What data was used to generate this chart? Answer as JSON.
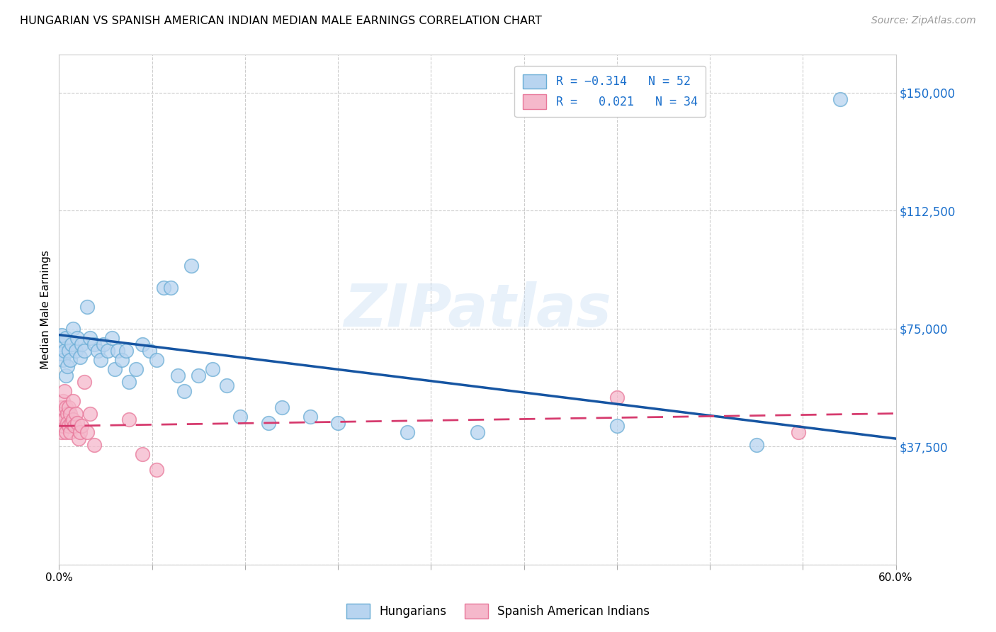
{
  "title": "HUNGARIAN VS SPANISH AMERICAN INDIAN MEDIAN MALE EARNINGS CORRELATION CHART",
  "source": "Source: ZipAtlas.com",
  "ylabel": "Median Male Earnings",
  "y_ticks": [
    0,
    37500,
    75000,
    112500,
    150000
  ],
  "y_tick_labels": [
    "",
    "$37,500",
    "$75,000",
    "$112,500",
    "$150,000"
  ],
  "x_min": 0.0,
  "x_max": 0.6,
  "y_min": 0,
  "y_max": 162000,
  "watermark": "ZIPatlas",
  "hungarian_color": "#b8d4f0",
  "hungarian_edge": "#6aadd5",
  "spanish_color": "#f5b8cb",
  "spanish_edge": "#e8789a",
  "trend_blue": "#1655a2",
  "trend_pink": "#d63b6e",
  "R_hungarian": -0.314,
  "N_hungarian": 52,
  "R_spanish": 0.021,
  "N_spanish": 34,
  "hun_trend_y0": 73000,
  "hun_trend_y1": 40000,
  "spa_trend_y0": 44000,
  "spa_trend_y1": 48000,
  "hun_x": [
    0.001,
    0.002,
    0.002,
    0.003,
    0.004,
    0.005,
    0.005,
    0.006,
    0.007,
    0.008,
    0.009,
    0.01,
    0.012,
    0.013,
    0.015,
    0.016,
    0.018,
    0.02,
    0.022,
    0.025,
    0.028,
    0.03,
    0.032,
    0.035,
    0.038,
    0.04,
    0.042,
    0.045,
    0.048,
    0.05,
    0.055,
    0.06,
    0.065,
    0.07,
    0.075,
    0.08,
    0.085,
    0.09,
    0.095,
    0.1,
    0.11,
    0.12,
    0.13,
    0.15,
    0.16,
    0.18,
    0.2,
    0.25,
    0.3,
    0.4,
    0.5,
    0.56
  ],
  "hun_y": [
    70000,
    67000,
    73000,
    65000,
    68000,
    72000,
    60000,
    63000,
    68000,
    65000,
    70000,
    75000,
    68000,
    72000,
    66000,
    70000,
    68000,
    82000,
    72000,
    70000,
    68000,
    65000,
    70000,
    68000,
    72000,
    62000,
    68000,
    65000,
    68000,
    58000,
    62000,
    70000,
    68000,
    65000,
    88000,
    88000,
    60000,
    55000,
    95000,
    60000,
    62000,
    57000,
    47000,
    45000,
    50000,
    47000,
    45000,
    42000,
    42000,
    44000,
    38000,
    148000
  ],
  "spa_x": [
    0.001,
    0.001,
    0.002,
    0.002,
    0.003,
    0.003,
    0.004,
    0.004,
    0.005,
    0.005,
    0.006,
    0.006,
    0.007,
    0.007,
    0.008,
    0.008,
    0.009,
    0.01,
    0.01,
    0.011,
    0.012,
    0.013,
    0.014,
    0.015,
    0.016,
    0.018,
    0.02,
    0.022,
    0.025,
    0.05,
    0.06,
    0.07,
    0.4,
    0.53
  ],
  "spa_y": [
    45000,
    48000,
    42000,
    50000,
    44000,
    52000,
    46000,
    55000,
    50000,
    42000,
    48000,
    45000,
    44000,
    50000,
    42000,
    48000,
    45000,
    52000,
    46000,
    44000,
    48000,
    45000,
    40000,
    42000,
    44000,
    58000,
    42000,
    48000,
    38000,
    46000,
    35000,
    30000,
    53000,
    42000
  ]
}
